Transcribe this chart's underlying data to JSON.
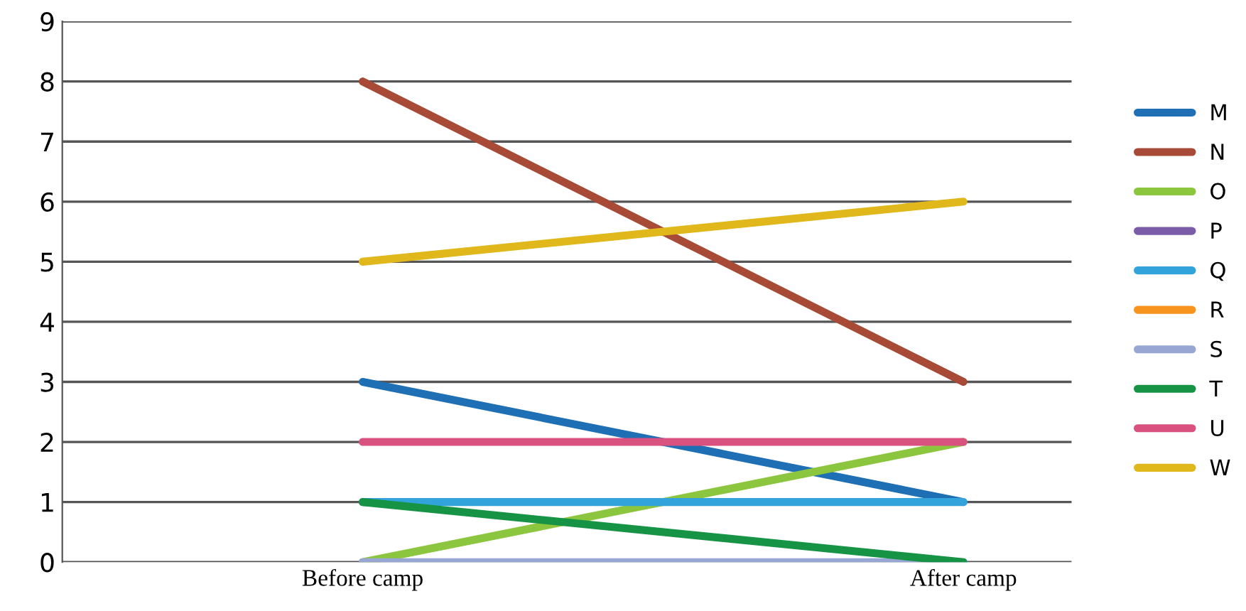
{
  "chart_data": {
    "type": "line",
    "categories": [
      "Before camp",
      "After camp"
    ],
    "ylim": [
      0,
      9
    ],
    "yticks": [
      0,
      1,
      2,
      3,
      4,
      5,
      6,
      7,
      8,
      9
    ],
    "grid": "y",
    "legend": "right",
    "marker": "none",
    "line_style": "solid",
    "series": [
      {
        "name": "M",
        "color": "#1f6fb5",
        "values": [
          3,
          1
        ]
      },
      {
        "name": "N",
        "color": "#a84a38",
        "values": [
          8,
          3
        ]
      },
      {
        "name": "O",
        "color": "#8cc63f",
        "values": [
          0,
          2
        ]
      },
      {
        "name": "P",
        "color": "#7b5ca8",
        "values": [
          null,
          null
        ]
      },
      {
        "name": "Q",
        "color": "#33a3dc",
        "values": [
          1,
          1
        ]
      },
      {
        "name": "R",
        "color": "#f7941d",
        "values": [
          null,
          null
        ]
      },
      {
        "name": "S",
        "color": "#98a6d4",
        "values": [
          0,
          0
        ]
      },
      {
        "name": "T",
        "color": "#179346",
        "values": [
          1,
          0
        ]
      },
      {
        "name": "U",
        "color": "#d9517e",
        "values": [
          2,
          2
        ]
      },
      {
        "name": "W",
        "color": "#e0b81b",
        "values": [
          5,
          6
        ]
      }
    ]
  }
}
